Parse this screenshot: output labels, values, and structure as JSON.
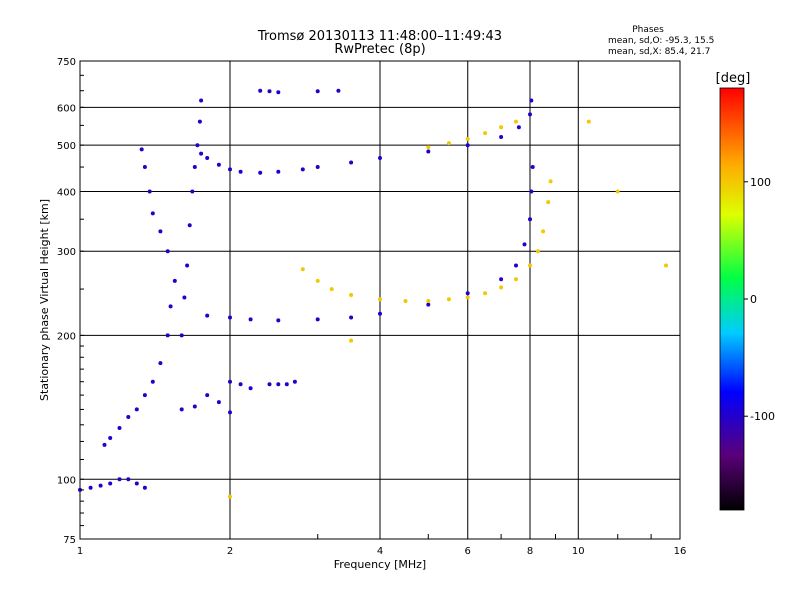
{
  "chart_data": {
    "type": "scatter",
    "title": "Tromsø 20130113 11:48:00–11:49:43",
    "subtitle": "RwPretec (8p)",
    "xlabel": "Frequency [MHz]",
    "ylabel": "Stationary phase Virtual Height [km]",
    "x_scale": "log",
    "y_scale": "log",
    "xlim": [
      1,
      16
    ],
    "ylim": [
      75,
      750
    ],
    "x_ticks": [
      1,
      2,
      4,
      6,
      8,
      10,
      16
    ],
    "y_ticks": [
      75,
      100,
      200,
      300,
      400,
      500,
      600,
      750
    ],
    "grid": true,
    "phase_stats": {
      "heading": "Phases",
      "line_o": "mean, sd,O:  -95.3, 15.5",
      "line_x": "mean, sd,X:   85.4, 21.7"
    },
    "colorbar": {
      "label": "[deg]",
      "range": [
        -180,
        180
      ],
      "ticks": [
        100,
        0,
        -100
      ],
      "tick_labels": [
        "100",
        "0",
        "-100"
      ],
      "colormap": "rainbow (black-purple-blue-cyan-green-yellow-orange-red)"
    },
    "series": [
      {
        "name": "",
        "color_deg": -100,
        "points": [
          [
            1.0,
            95
          ],
          [
            1.05,
            96
          ],
          [
            1.1,
            97
          ],
          [
            1.15,
            98
          ],
          [
            1.2,
            100
          ],
          [
            1.25,
            100
          ],
          [
            1.3,
            98
          ],
          [
            1.35,
            96
          ]
        ]
      },
      {
        "name": "",
        "color_deg": -100,
        "points": [
          [
            1.12,
            118
          ],
          [
            1.15,
            122
          ],
          [
            1.2,
            128
          ],
          [
            1.25,
            135
          ],
          [
            1.3,
            140
          ],
          [
            1.35,
            150
          ],
          [
            1.4,
            160
          ],
          [
            1.45,
            175
          ],
          [
            1.5,
            200
          ],
          [
            1.52,
            230
          ],
          [
            1.55,
            260
          ],
          [
            1.5,
            300
          ],
          [
            1.45,
            330
          ],
          [
            1.4,
            360
          ],
          [
            1.38,
            400
          ],
          [
            1.35,
            450
          ],
          [
            1.33,
            490
          ]
        ]
      },
      {
        "name": "",
        "color_deg": -100,
        "points": [
          [
            1.6,
            200
          ],
          [
            1.62,
            240
          ],
          [
            1.64,
            280
          ],
          [
            1.66,
            340
          ],
          [
            1.68,
            400
          ],
          [
            1.7,
            450
          ],
          [
            1.72,
            500
          ],
          [
            1.74,
            560
          ],
          [
            1.75,
            620
          ]
        ]
      },
      {
        "name": "",
        "color_deg": -100,
        "points": [
          [
            1.75,
            480
          ],
          [
            1.8,
            470
          ],
          [
            1.9,
            455
          ],
          [
            2.0,
            445
          ],
          [
            2.1,
            440
          ],
          [
            2.3,
            438
          ],
          [
            2.5,
            440
          ],
          [
            2.8,
            445
          ],
          [
            3.0,
            450
          ],
          [
            3.5,
            460
          ],
          [
            4.0,
            470
          ],
          [
            5.0,
            485
          ],
          [
            6.0,
            500
          ],
          [
            7.0,
            520
          ],
          [
            7.6,
            545
          ],
          [
            8.0,
            580
          ],
          [
            8.05,
            620
          ]
        ]
      },
      {
        "name": "",
        "color_deg": -100,
        "points": [
          [
            1.8,
            220
          ],
          [
            2.0,
            218
          ],
          [
            2.2,
            216
          ],
          [
            2.5,
            215
          ],
          [
            3.0,
            216
          ],
          [
            3.5,
            218
          ],
          [
            4.0,
            222
          ],
          [
            5.0,
            232
          ],
          [
            6.0,
            245
          ],
          [
            7.0,
            262
          ],
          [
            7.5,
            280
          ],
          [
            7.8,
            310
          ],
          [
            8.0,
            350
          ],
          [
            8.05,
            400
          ],
          [
            8.1,
            450
          ]
        ]
      },
      {
        "name": "",
        "color_deg": 100,
        "points": [
          [
            2.8,
            275
          ],
          [
            3.0,
            260
          ],
          [
            3.2,
            250
          ],
          [
            3.5,
            243
          ],
          [
            4.0,
            238
          ],
          [
            4.5,
            236
          ],
          [
            5.0,
            236
          ],
          [
            5.5,
            238
          ],
          [
            6.0,
            240
          ],
          [
            6.5,
            245
          ],
          [
            7.0,
            252
          ],
          [
            7.5,
            262
          ],
          [
            8.0,
            280
          ],
          [
            8.3,
            300
          ],
          [
            8.5,
            330
          ],
          [
            8.7,
            380
          ],
          [
            8.8,
            420
          ]
        ]
      },
      {
        "name": "",
        "color_deg": 100,
        "points": [
          [
            5.0,
            495
          ],
          [
            5.5,
            505
          ],
          [
            6.0,
            515
          ],
          [
            6.5,
            530
          ],
          [
            7.0,
            545
          ],
          [
            7.5,
            560
          ]
        ]
      },
      {
        "name": "",
        "color_deg": -100,
        "points": [
          [
            2.0,
            160
          ],
          [
            2.1,
            158
          ],
          [
            2.2,
            155
          ],
          [
            2.4,
            158
          ],
          [
            2.5,
            158
          ],
          [
            2.6,
            158
          ],
          [
            2.7,
            160
          ]
        ]
      },
      {
        "name": "",
        "color_deg": -100,
        "points": [
          [
            1.6,
            140
          ],
          [
            1.7,
            142
          ],
          [
            1.8,
            150
          ],
          [
            1.9,
            145
          ],
          [
            2.0,
            138
          ]
        ]
      },
      {
        "name": "",
        "color_deg": -100,
        "points": [
          [
            2.3,
            650
          ],
          [
            2.4,
            648
          ],
          [
            2.5,
            645
          ],
          [
            3.0,
            648
          ],
          [
            3.3,
            650
          ]
        ]
      },
      {
        "name": "",
        "color_deg": 100,
        "points": [
          [
            2.0,
            92
          ],
          [
            3.5,
            195
          ],
          [
            10.5,
            560
          ],
          [
            12.0,
            400
          ],
          [
            15.0,
            280
          ]
        ]
      }
    ]
  }
}
